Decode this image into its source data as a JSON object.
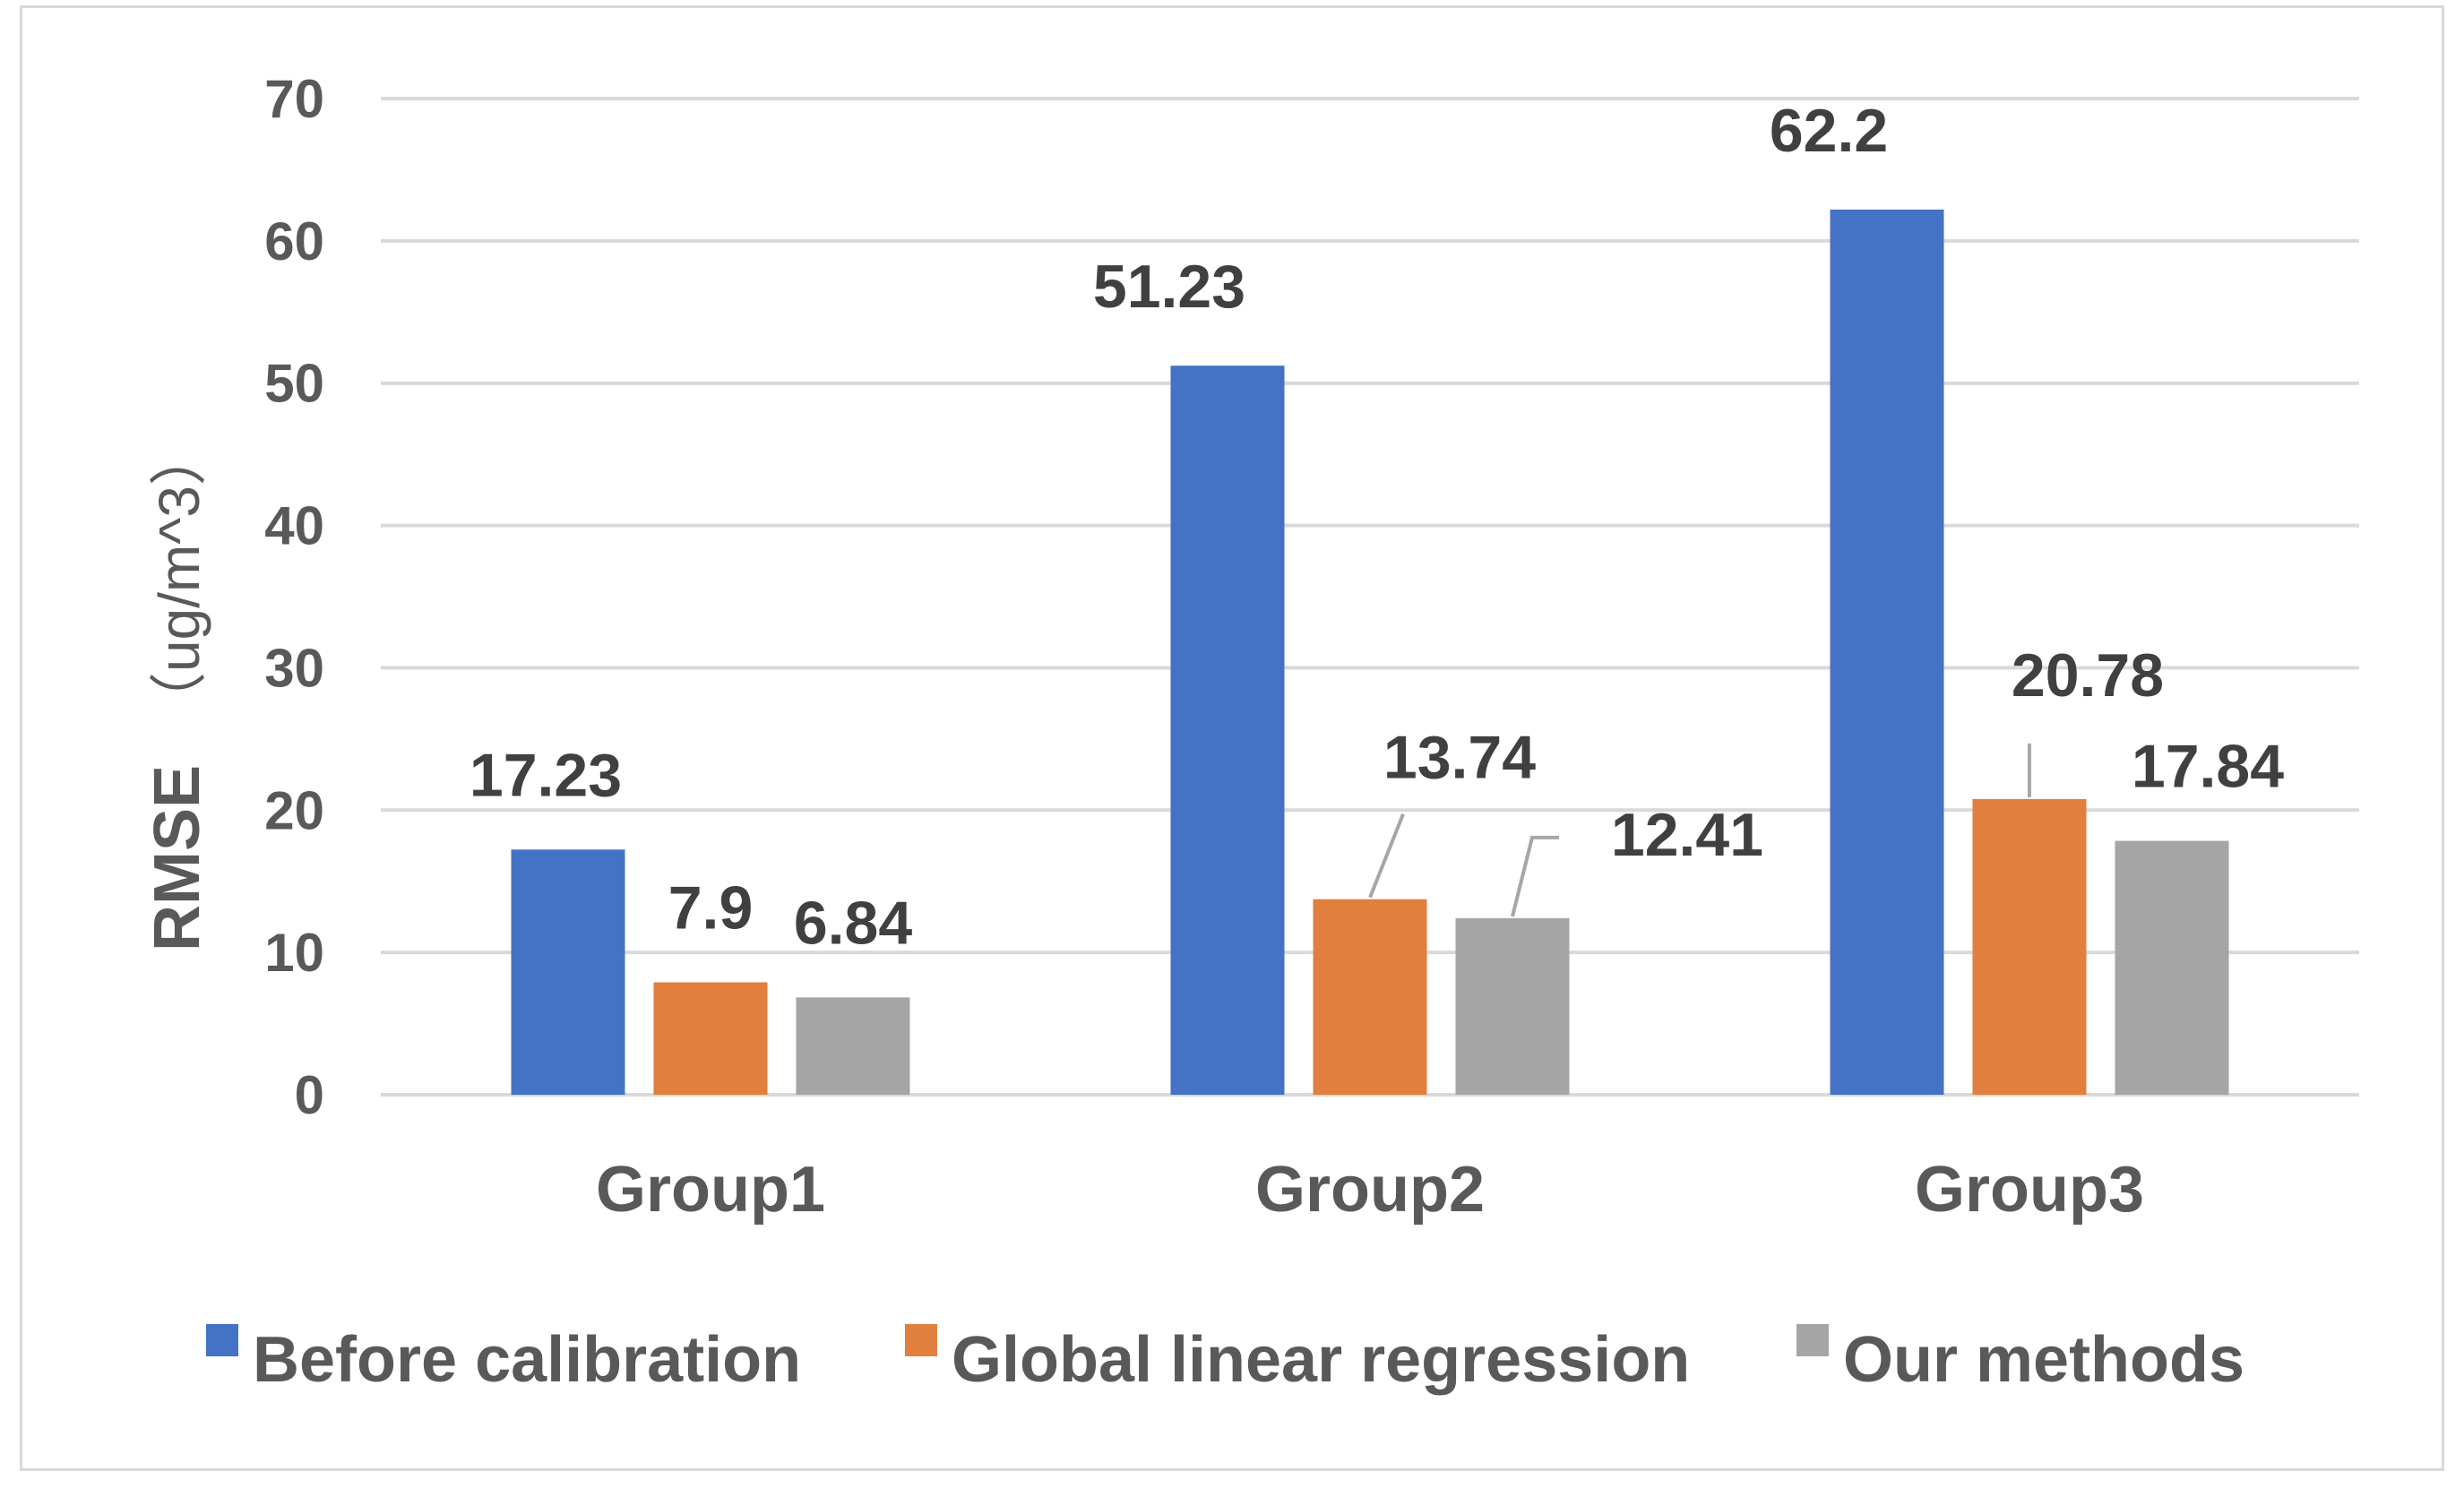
{
  "chart_data": {
    "type": "bar",
    "categories": [
      "Group1",
      "Group2",
      "Group3"
    ],
    "series": [
      {
        "name": "Before calibration",
        "color": "#4472c4",
        "values": [
          17.23,
          51.23,
          62.2
        ],
        "labels": [
          "17.23",
          "51.23",
          "62.2"
        ]
      },
      {
        "name": "Global linear regression",
        "color": "#e07f3e",
        "values": [
          7.9,
          13.74,
          20.78
        ],
        "labels": [
          "7.9",
          "13.74",
          "20.78"
        ]
      },
      {
        "name": "Our methods",
        "color": "#a5a5a5",
        "values": [
          6.84,
          12.41,
          17.84
        ],
        "labels": [
          "6.84",
          "12.41",
          "17.84"
        ]
      }
    ],
    "title": "",
    "xlabel": "",
    "ylabel": "RMSE",
    "ylabel_unit": "（ug/m^3）",
    "ylim": [
      0,
      70
    ],
    "yticks": [
      "0",
      "10",
      "20",
      "30",
      "40",
      "50",
      "60",
      "70"
    ],
    "grid": true,
    "legend_position": "bottom"
  }
}
